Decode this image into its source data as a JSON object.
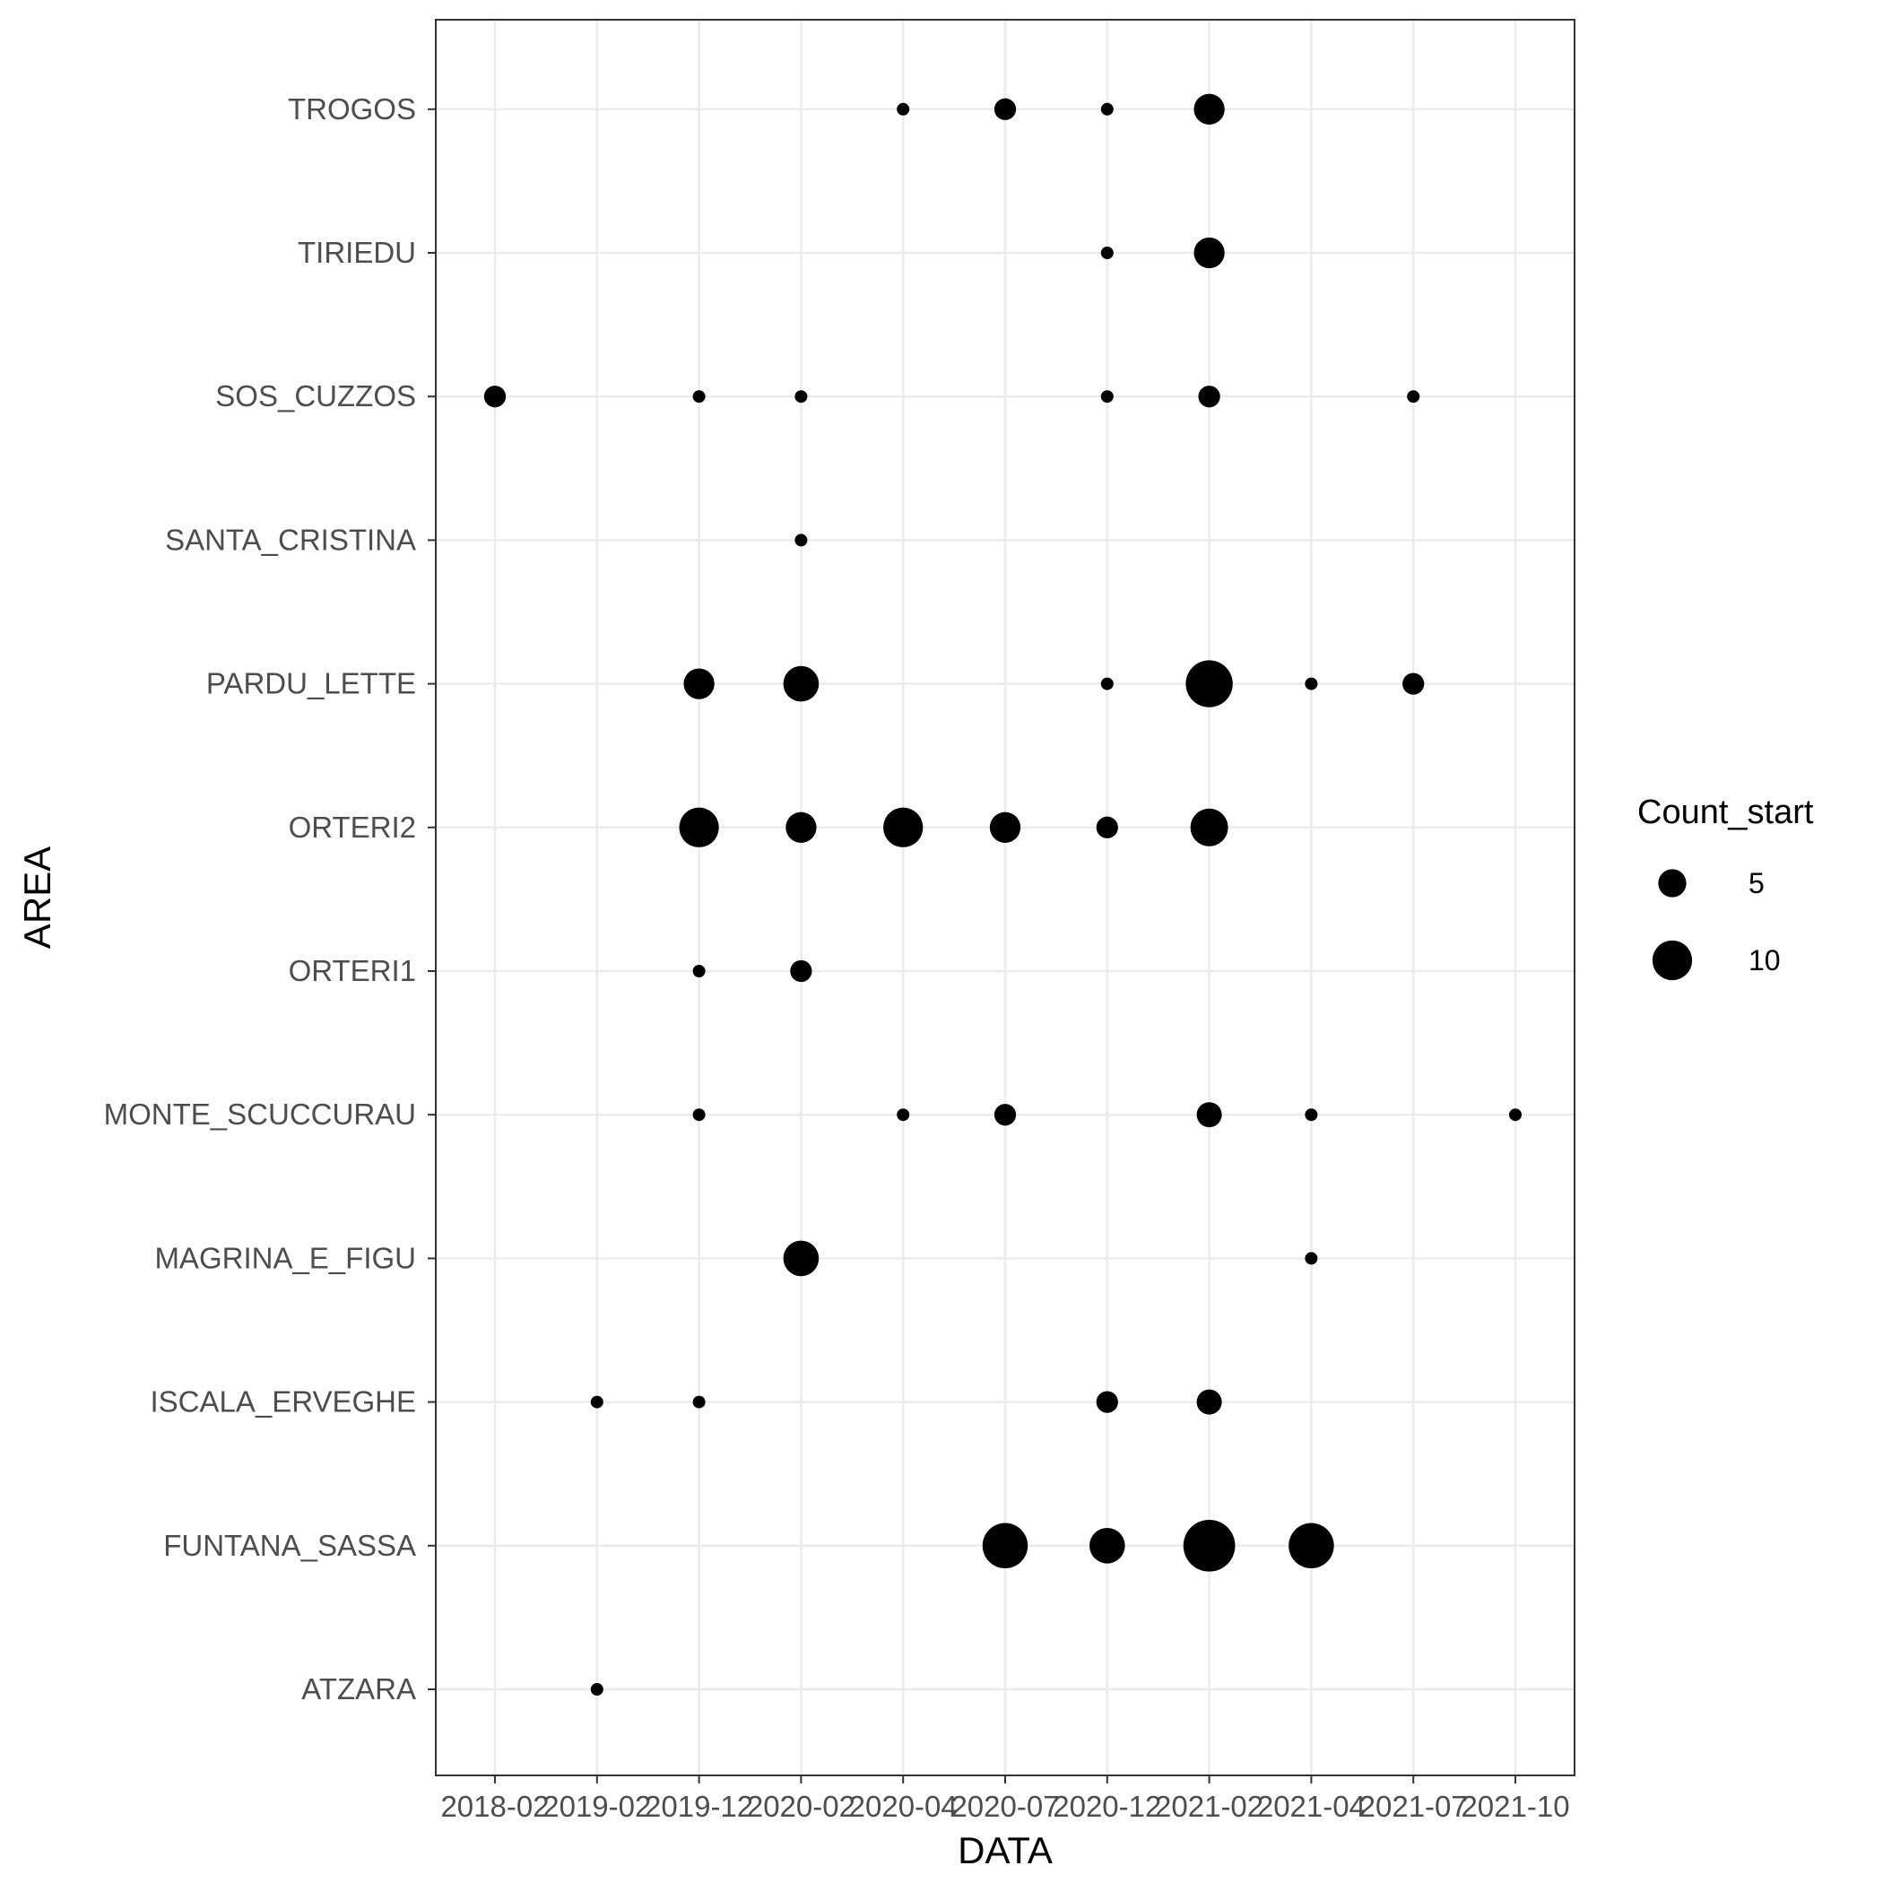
{
  "chart_data": {
    "type": "scatter",
    "xlabel": "DATA",
    "ylabel": "AREA",
    "x_categories": [
      "2018-02",
      "2019-02",
      "2019-12",
      "2020-02",
      "2020-04",
      "2020-07",
      "2020-12",
      "2021-02",
      "2021-04",
      "2021-07",
      "2021-10"
    ],
    "y_categories": [
      "ATZARA",
      "FUNTANA_SASSA",
      "ISCALA_ERVEGHE",
      "MAGRINA_E_FIGU",
      "MONTE_SCUCCURAU",
      "ORTERI1",
      "ORTERI2",
      "PARDU_LETTE",
      "SANTA_CRISTINA",
      "SOS_CUZZOS",
      "TIRIEDU",
      "TROGOS"
    ],
    "size_variable": "Count_start",
    "legend": {
      "title": "Count_start",
      "position": "right",
      "entries": [
        {
          "label": "5",
          "size": 5
        },
        {
          "label": "10",
          "size": 10
        }
      ]
    },
    "grid": true,
    "points": [
      {
        "x": "2020-04",
        "y": "TROGOS",
        "size": 1
      },
      {
        "x": "2020-07",
        "y": "TROGOS",
        "size": 3
      },
      {
        "x": "2020-12",
        "y": "TROGOS",
        "size": 1
      },
      {
        "x": "2021-02",
        "y": "TROGOS",
        "size": 6
      },
      {
        "x": "2020-12",
        "y": "TIRIEDU",
        "size": 1
      },
      {
        "x": "2021-02",
        "y": "TIRIEDU",
        "size": 6
      },
      {
        "x": "2018-02",
        "y": "SOS_CUZZOS",
        "size": 3
      },
      {
        "x": "2019-12",
        "y": "SOS_CUZZOS",
        "size": 1
      },
      {
        "x": "2020-02",
        "y": "SOS_CUZZOS",
        "size": 1
      },
      {
        "x": "2020-12",
        "y": "SOS_CUZZOS",
        "size": 1
      },
      {
        "x": "2021-02",
        "y": "SOS_CUZZOS",
        "size": 3
      },
      {
        "x": "2021-07",
        "y": "SOS_CUZZOS",
        "size": 1
      },
      {
        "x": "2020-02",
        "y": "SANTA_CRISTINA",
        "size": 1
      },
      {
        "x": "2019-12",
        "y": "PARDU_LETTE",
        "size": 6
      },
      {
        "x": "2020-02",
        "y": "PARDU_LETTE",
        "size": 8
      },
      {
        "x": "2020-12",
        "y": "PARDU_LETTE",
        "size": 1
      },
      {
        "x": "2021-02",
        "y": "PARDU_LETTE",
        "size": 14
      },
      {
        "x": "2021-04",
        "y": "PARDU_LETTE",
        "size": 1
      },
      {
        "x": "2021-07",
        "y": "PARDU_LETTE",
        "size": 3
      },
      {
        "x": "2019-12",
        "y": "ORTERI2",
        "size": 10
      },
      {
        "x": "2020-02",
        "y": "ORTERI2",
        "size": 6
      },
      {
        "x": "2020-04",
        "y": "ORTERI2",
        "size": 10
      },
      {
        "x": "2020-07",
        "y": "ORTERI2",
        "size": 6
      },
      {
        "x": "2020-12",
        "y": "ORTERI2",
        "size": 3
      },
      {
        "x": "2021-02",
        "y": "ORTERI2",
        "size": 9
      },
      {
        "x": "2019-12",
        "y": "ORTERI1",
        "size": 1
      },
      {
        "x": "2020-02",
        "y": "ORTERI1",
        "size": 3
      },
      {
        "x": "2019-12",
        "y": "MONTE_SCUCCURAU",
        "size": 1
      },
      {
        "x": "2020-04",
        "y": "MONTE_SCUCCURAU",
        "size": 1
      },
      {
        "x": "2020-07",
        "y": "MONTE_SCUCCURAU",
        "size": 3
      },
      {
        "x": "2021-02",
        "y": "MONTE_SCUCCURAU",
        "size": 4
      },
      {
        "x": "2021-04",
        "y": "MONTE_SCUCCURAU",
        "size": 1
      },
      {
        "x": "2021-10",
        "y": "MONTE_SCUCCURAU",
        "size": 1
      },
      {
        "x": "2020-02",
        "y": "MAGRINA_E_FIGU",
        "size": 8
      },
      {
        "x": "2021-04",
        "y": "MAGRINA_E_FIGU",
        "size": 1
      },
      {
        "x": "2019-02",
        "y": "ISCALA_ERVEGHE",
        "size": 1
      },
      {
        "x": "2019-12",
        "y": "ISCALA_ERVEGHE",
        "size": 1
      },
      {
        "x": "2020-12",
        "y": "ISCALA_ERVEGHE",
        "size": 3
      },
      {
        "x": "2021-02",
        "y": "ISCALA_ERVEGHE",
        "size": 4
      },
      {
        "x": "2020-07",
        "y": "FUNTANA_SASSA",
        "size": 13
      },
      {
        "x": "2020-12",
        "y": "FUNTANA_SASSA",
        "size": 8
      },
      {
        "x": "2021-02",
        "y": "FUNTANA_SASSA",
        "size": 17
      },
      {
        "x": "2021-04",
        "y": "FUNTANA_SASSA",
        "size": 13
      },
      {
        "x": "2019-02",
        "y": "ATZARA",
        "size": 1
      }
    ]
  }
}
